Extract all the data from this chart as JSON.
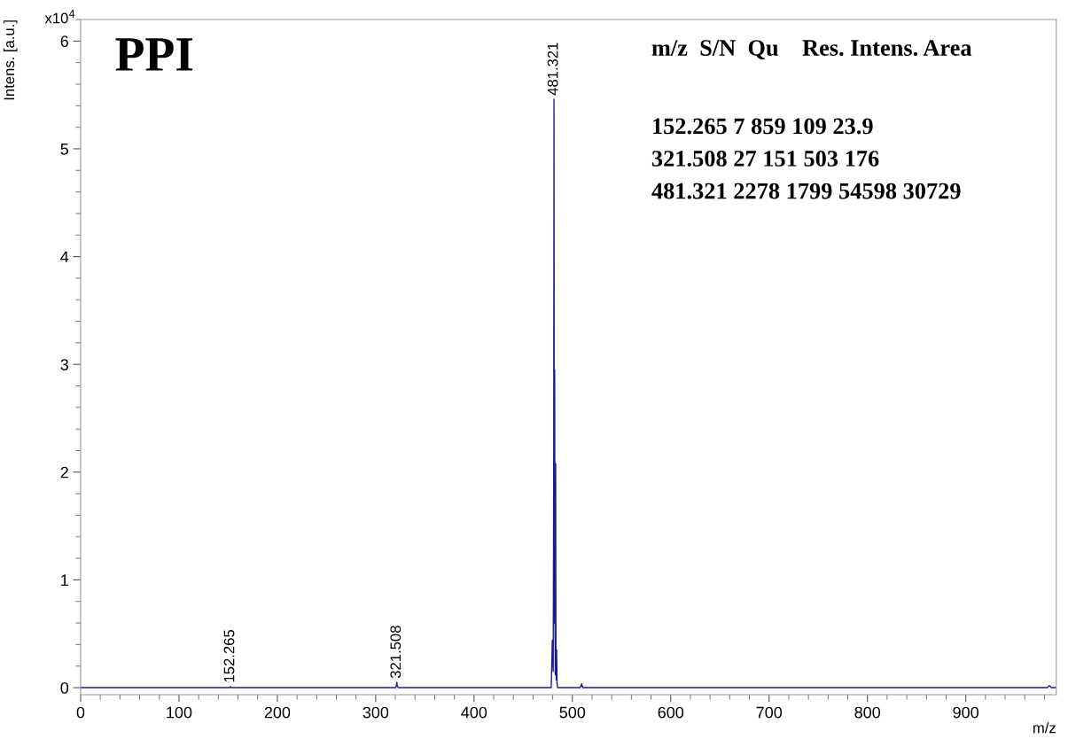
{
  "chart_data": {
    "type": "line",
    "title": "PPI",
    "xlabel": "m/z",
    "ylabel": "Intens. [a.u.]",
    "x": [
      0,
      150,
      151.8,
      152.265,
      152.8,
      320.5,
      321.0,
      321.508,
      322.0,
      323,
      478.5,
      479.6,
      480.0,
      480.5,
      481.0,
      481.321,
      481.7,
      482.0,
      482.3,
      482.6,
      483.0,
      483.3,
      483.6,
      484.0,
      484.4,
      485,
      486,
      508,
      509.5,
      510.5,
      512,
      983,
      985,
      987,
      992
    ],
    "series": [
      {
        "color": "#1c1c8f",
        "values": [
          0,
          0,
          0,
          0.0109,
          0,
          0,
          0.02,
          0.0503,
          0.015,
          0,
          0,
          0.44,
          0.3,
          0.15,
          2.0,
          5.4598,
          0.6,
          2.95,
          0.8,
          0.12,
          2.08,
          0.3,
          0.07,
          0.35,
          0.04,
          0,
          0,
          0,
          0.035,
          0,
          0,
          0,
          0.02,
          0,
          0
        ]
      }
    ],
    "xlim": [
      0,
      992
    ],
    "ylim": [
      -0.065,
      6.2
    ],
    "xticks": [
      0,
      100,
      200,
      300,
      400,
      500,
      600,
      700,
      800,
      900,
      {
        "value": 20,
        "label": null
      },
      {
        "value": 40,
        "label": null
      },
      {
        "value": 60,
        "label": null
      },
      {
        "value": 80,
        "label": null
      },
      {
        "value": 120,
        "label": null
      },
      {
        "value": 140,
        "label": null
      },
      {
        "value": 160,
        "label": null
      },
      {
        "value": 180,
        "label": null
      },
      {
        "value": 220,
        "label": null
      },
      {
        "value": 240,
        "label": null
      },
      {
        "value": 260,
        "label": null
      },
      {
        "value": 280,
        "label": null
      },
      {
        "value": 320,
        "label": null
      },
      {
        "value": 340,
        "label": null
      },
      {
        "value": 360,
        "label": null
      },
      {
        "value": 380,
        "label": null
      },
      {
        "value": 420,
        "label": null
      },
      {
        "value": 440,
        "label": null
      },
      {
        "value": 460,
        "label": null
      },
      {
        "value": 480,
        "label": null
      },
      {
        "value": 520,
        "label": null
      },
      {
        "value": 540,
        "label": null
      },
      {
        "value": 560,
        "label": null
      },
      {
        "value": 580,
        "label": null
      },
      {
        "value": 620,
        "label": null
      },
      {
        "value": 640,
        "label": null
      },
      {
        "value": 660,
        "label": null
      },
      {
        "value": 680,
        "label": null
      },
      {
        "value": 720,
        "label": null
      },
      {
        "value": 740,
        "label": null
      },
      {
        "value": 760,
        "label": null
      },
      {
        "value": 780,
        "label": null
      },
      {
        "value": 820,
        "label": null
      },
      {
        "value": 840,
        "label": null
      },
      {
        "value": 860,
        "label": null
      },
      {
        "value": 880,
        "label": null
      },
      {
        "value": 920,
        "label": null
      },
      {
        "value": 940,
        "label": null
      },
      {
        "value": 960,
        "label": null
      },
      {
        "value": 980,
        "label": null
      }
    ],
    "yticks": [
      0,
      1,
      2,
      3,
      4,
      5,
      6,
      {
        "value": 0.2,
        "label": null
      },
      {
        "value": 0.4,
        "label": null
      },
      {
        "value": 0.6,
        "label": null
      },
      {
        "value": 0.8,
        "label": null
      },
      {
        "value": 1.2,
        "label": null
      },
      {
        "value": 1.4,
        "label": null
      },
      {
        "value": 1.6,
        "label": null
      },
      {
        "value": 1.8,
        "label": null
      },
      {
        "value": 2.2,
        "label": null
      },
      {
        "value": 2.4,
        "label": null
      },
      {
        "value": 2.6,
        "label": null
      },
      {
        "value": 2.8,
        "label": null
      },
      {
        "value": 3.2,
        "label": null
      },
      {
        "value": 3.4,
        "label": null
      },
      {
        "value": 3.6,
        "label": null
      },
      {
        "value": 3.8,
        "label": null
      },
      {
        "value": 4.2,
        "label": null
      },
      {
        "value": 4.4,
        "label": null
      },
      {
        "value": 4.6,
        "label": null
      },
      {
        "value": 4.8,
        "label": null
      },
      {
        "value": 5.2,
        "label": null
      },
      {
        "value": 5.4,
        "label": null
      },
      {
        "value": 5.6,
        "label": null
      },
      {
        "value": 5.8,
        "label": null
      },
      {
        "value": 6.2,
        "label": null
      }
    ],
    "annotations": [
      {
        "text": "152.265",
        "x": 152.265,
        "y": 0.0109
      },
      {
        "text": "321.508",
        "x": 321.508,
        "y": 0.0503
      },
      {
        "text": "481.321",
        "x": 481.321,
        "y": 5.4598
      },
      "x10$^{4}$",
      "m/z  S/N  Qu    Res. Intens. Area",
      "152.265 7 859 109 23.9",
      "321.508 27 151 503 176",
      "481.321 2278 1799 54598 30729"
    ],
    "grid": false,
    "legend": false
  }
}
